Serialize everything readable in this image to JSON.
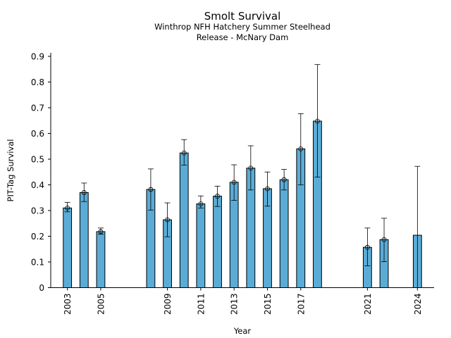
{
  "chart_data": {
    "type": "bar",
    "title": "Smolt Survival",
    "subtitle_lines": [
      "Winthrop NFH Hatchery Summer Steelhead",
      "Release - McNary Dam"
    ],
    "xlabel": "Year",
    "ylabel": "PIT-Tag Survival",
    "ylim": [
      0,
      0.9
    ],
    "xlim": [
      2002,
      2025
    ],
    "yticks": [
      0,
      0.1,
      0.2,
      0.3,
      0.4,
      0.5,
      0.6,
      0.7,
      0.8,
      0.9
    ],
    "ytick_labels": [
      "0",
      "0.1",
      "0.2",
      "0.3",
      "0.4",
      "0.5",
      "0.6",
      "0.7",
      "0.8",
      "0.9"
    ],
    "xticks": [
      2003,
      2005,
      2009,
      2011,
      2013,
      2015,
      2017,
      2021,
      2024
    ],
    "xtick_labels": [
      "2003",
      "2005",
      "2009",
      "2011",
      "2013",
      "2015",
      "2017",
      "2021",
      "2024"
    ],
    "grid": false,
    "bar_color": "#5aacd6",
    "bar_edge_color": "#000000",
    "years": [
      2003,
      2004,
      2005,
      2008,
      2009,
      2010,
      2011,
      2012,
      2013,
      2014,
      2015,
      2016,
      2017,
      2018,
      2021,
      2022,
      2024
    ],
    "values": [
      0.31,
      0.37,
      0.218,
      0.382,
      0.264,
      0.524,
      0.326,
      0.356,
      0.41,
      0.465,
      0.385,
      0.42,
      0.54,
      0.648,
      0.157,
      0.187,
      0.204
    ],
    "error_lower": [
      0.295,
      0.335,
      0.208,
      0.302,
      0.198,
      0.477,
      0.31,
      0.316,
      0.34,
      0.38,
      0.317,
      0.38,
      0.4,
      0.43,
      0.085,
      0.101,
      0.0
    ],
    "error_upper": [
      0.332,
      0.407,
      0.232,
      0.462,
      0.33,
      0.576,
      0.357,
      0.395,
      0.478,
      0.552,
      0.45,
      0.46,
      0.677,
      0.868,
      0.232,
      0.27,
      0.472
    ],
    "markers": [
      true,
      true,
      true,
      true,
      true,
      true,
      true,
      true,
      true,
      true,
      true,
      true,
      true,
      true,
      true,
      true,
      false
    ]
  }
}
